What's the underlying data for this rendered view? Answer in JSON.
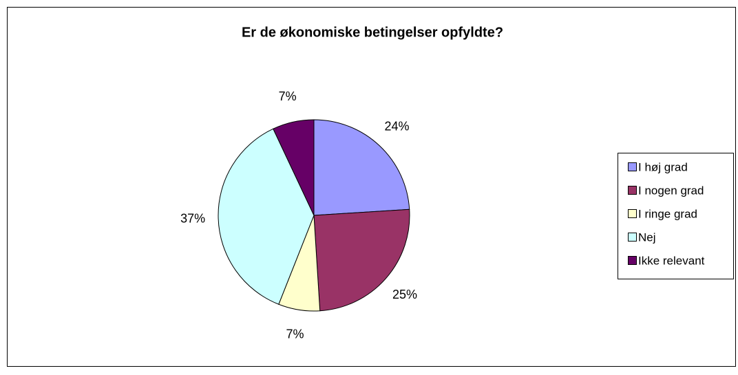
{
  "chart_data": {
    "type": "pie",
    "title": "Er de økonomiske betingelser opfyldte?",
    "categories": [
      "I høj grad",
      "I nogen grad",
      "I ringe grad",
      "Nej",
      "Ikke relevant"
    ],
    "values": [
      24,
      25,
      7,
      37,
      7
    ],
    "value_labels": [
      "24%",
      "25%",
      "7%",
      "37%",
      "7%"
    ],
    "colors": [
      "#9999ff",
      "#993366",
      "#ffffcc",
      "#ccffff",
      "#660066"
    ],
    "legend": "right"
  }
}
